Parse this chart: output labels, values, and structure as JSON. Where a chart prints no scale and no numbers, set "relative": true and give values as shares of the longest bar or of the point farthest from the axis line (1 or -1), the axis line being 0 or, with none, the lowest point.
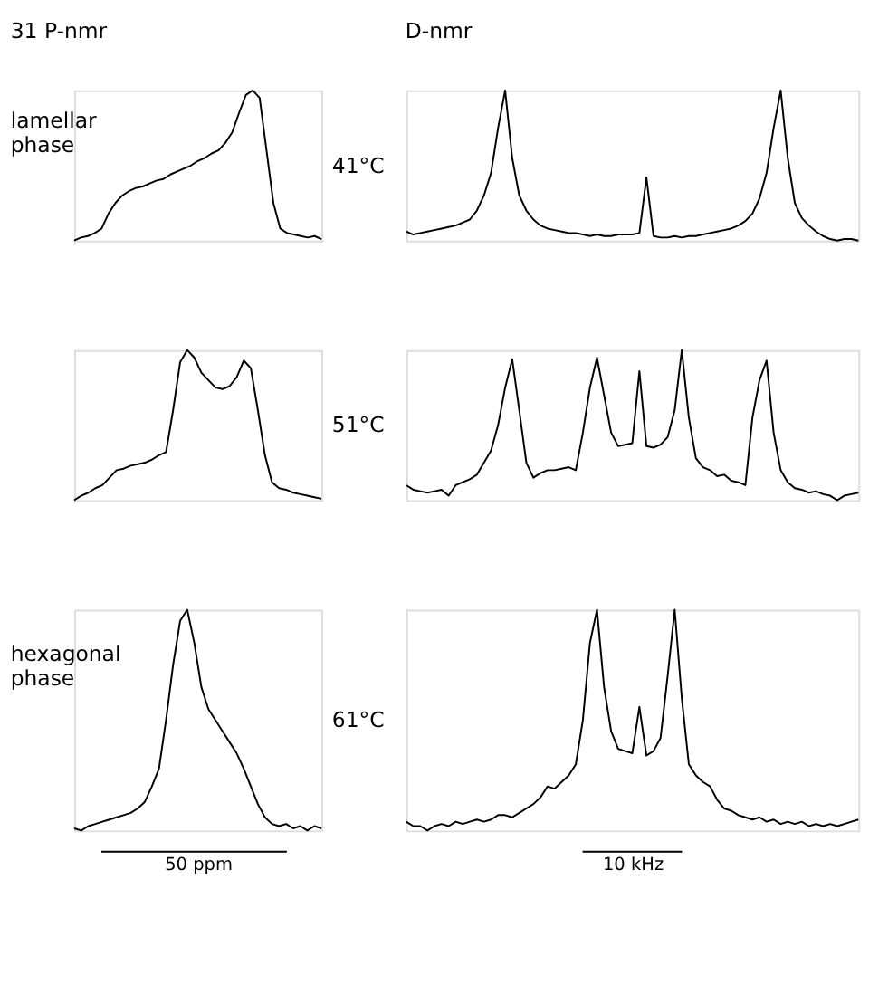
{
  "chart_data": [
    {
      "type": "line",
      "relative": true,
      "title": "31 P-nmr",
      "annotations": [
        "lamellar phase",
        "41°C"
      ],
      "color": "#000000",
      "categories": [
        null,
        null,
        null,
        null,
        null,
        null,
        null,
        null,
        null,
        null,
        null,
        null,
        null,
        null,
        null,
        null,
        null,
        null,
        null,
        null,
        null,
        null,
        null,
        null,
        null,
        null,
        null,
        null,
        null,
        null,
        null,
        null,
        null,
        null,
        null,
        null,
        null
      ],
      "values": [
        0,
        0.02,
        0.03,
        0.05,
        0.08,
        0.18,
        0.25,
        0.3,
        0.33,
        0.35,
        0.36,
        0.38,
        0.4,
        0.41,
        0.44,
        0.46,
        0.48,
        0.5,
        0.53,
        0.55,
        0.58,
        0.6,
        0.65,
        0.72,
        0.85,
        0.97,
        1.0,
        0.95,
        0.6,
        0.25,
        0.08,
        0.05,
        0.04,
        0.03,
        0.02,
        0.03,
        0.01
      ]
    },
    {
      "type": "line",
      "relative": true,
      "title": "D-nmr",
      "color": "#000000",
      "categories": [
        null,
        null,
        null,
        null,
        null,
        null,
        null,
        null,
        null,
        null,
        null,
        null,
        null,
        null,
        null,
        null,
        null,
        null,
        null,
        null,
        null,
        null,
        null,
        null,
        null,
        null,
        null,
        null,
        null,
        null,
        null,
        null,
        null,
        null,
        null,
        null,
        null,
        null,
        null,
        null,
        null,
        null,
        null,
        null,
        null,
        null,
        null,
        null,
        null,
        null,
        null,
        null,
        null,
        null,
        null,
        null,
        null,
        null,
        null,
        null,
        null,
        null,
        null,
        null,
        null
      ],
      "values": [
        0.06,
        0.04,
        0.05,
        0.06,
        0.07,
        0.08,
        0.09,
        0.1,
        0.12,
        0.14,
        0.2,
        0.3,
        0.45,
        0.75,
        1.0,
        0.55,
        0.3,
        0.2,
        0.14,
        0.1,
        0.08,
        0.07,
        0.06,
        0.05,
        0.05,
        0.04,
        0.03,
        0.04,
        0.03,
        0.03,
        0.04,
        0.04,
        0.04,
        0.05,
        0.42,
        0.03,
        0.02,
        0.02,
        0.03,
        0.02,
        0.03,
        0.03,
        0.04,
        0.05,
        0.06,
        0.07,
        0.08,
        0.1,
        0.13,
        0.18,
        0.28,
        0.45,
        0.75,
        1.0,
        0.55,
        0.25,
        0.15,
        0.1,
        0.06,
        0.03,
        0.01,
        0,
        0.01,
        0.01,
        0
      ]
    },
    {
      "type": "line",
      "relative": true,
      "annotations": [
        "51°C"
      ],
      "color": "#000000",
      "categories": [
        null,
        null,
        null,
        null,
        null,
        null,
        null,
        null,
        null,
        null,
        null,
        null,
        null,
        null,
        null,
        null,
        null,
        null,
        null,
        null,
        null,
        null,
        null,
        null,
        null,
        null,
        null,
        null,
        null,
        null,
        null,
        null,
        null,
        null,
        null,
        null
      ],
      "values": [
        0,
        0.03,
        0.05,
        0.08,
        0.1,
        0.15,
        0.2,
        0.21,
        0.23,
        0.24,
        0.25,
        0.27,
        0.3,
        0.32,
        0.6,
        0.92,
        1.0,
        0.95,
        0.85,
        0.8,
        0.75,
        0.74,
        0.76,
        0.82,
        0.93,
        0.88,
        0.6,
        0.3,
        0.12,
        0.08,
        0.07,
        0.05,
        0.04,
        0.03,
        0.02,
        0.01
      ]
    },
    {
      "type": "line",
      "relative": true,
      "color": "#000000",
      "categories": [
        null,
        null,
        null,
        null,
        null,
        null,
        null,
        null,
        null,
        null,
        null,
        null,
        null,
        null,
        null,
        null,
        null,
        null,
        null,
        null,
        null,
        null,
        null,
        null,
        null,
        null,
        null,
        null,
        null,
        null,
        null,
        null,
        null,
        null,
        null,
        null,
        null,
        null,
        null,
        null,
        null,
        null,
        null,
        null,
        null,
        null,
        null,
        null,
        null,
        null,
        null,
        null,
        null,
        null,
        null,
        null,
        null,
        null,
        null,
        null,
        null,
        null,
        null,
        null,
        null
      ],
      "values": [
        0.1,
        0.07,
        0.06,
        0.05,
        0.06,
        0.07,
        0.03,
        0.1,
        0.12,
        0.14,
        0.17,
        0.25,
        0.33,
        0.5,
        0.75,
        0.94,
        0.6,
        0.25,
        0.15,
        0.18,
        0.2,
        0.2,
        0.21,
        0.22,
        0.2,
        0.45,
        0.75,
        0.95,
        0.7,
        0.45,
        0.36,
        0.37,
        0.38,
        0.86,
        0.36,
        0.35,
        0.37,
        0.42,
        0.6,
        1.0,
        0.55,
        0.28,
        0.22,
        0.2,
        0.16,
        0.17,
        0.13,
        0.12,
        0.1,
        0.55,
        0.8,
        0.93,
        0.45,
        0.2,
        0.12,
        0.08,
        0.07,
        0.05,
        0.06,
        0.04,
        0.03,
        0,
        0.03,
        0.04,
        0.05
      ]
    },
    {
      "type": "line",
      "relative": true,
      "annotations": [
        "hexagonal phase",
        "61°C"
      ],
      "xlabel": "50 ppm",
      "color": "#000000",
      "categories": [
        null,
        null,
        null,
        null,
        null,
        null,
        null,
        null,
        null,
        null,
        null,
        null,
        null,
        null,
        null,
        null,
        null,
        null,
        null,
        null,
        null,
        null,
        null,
        null,
        null,
        null,
        null,
        null,
        null,
        null,
        null,
        null,
        null,
        null,
        null,
        null
      ],
      "values": [
        0.01,
        0,
        0.02,
        0.03,
        0.04,
        0.05,
        0.06,
        0.07,
        0.08,
        0.1,
        0.13,
        0.2,
        0.28,
        0.5,
        0.75,
        0.95,
        1.0,
        0.85,
        0.65,
        0.55,
        0.5,
        0.45,
        0.4,
        0.35,
        0.28,
        0.2,
        0.12,
        0.06,
        0.03,
        0.02,
        0.03,
        0.01,
        0.02,
        0,
        0.02,
        0.01
      ]
    },
    {
      "type": "line",
      "relative": true,
      "xlabel": "10 kHz",
      "color": "#000000",
      "categories": [
        null,
        null,
        null,
        null,
        null,
        null,
        null,
        null,
        null,
        null,
        null,
        null,
        null,
        null,
        null,
        null,
        null,
        null,
        null,
        null,
        null,
        null,
        null,
        null,
        null,
        null,
        null,
        null,
        null,
        null,
        null,
        null,
        null,
        null,
        null,
        null,
        null,
        null,
        null,
        null,
        null,
        null,
        null,
        null,
        null,
        null,
        null,
        null,
        null,
        null,
        null,
        null,
        null,
        null,
        null,
        null,
        null,
        null,
        null,
        null,
        null,
        null,
        null,
        null,
        null
      ],
      "values": [
        0.04,
        0.02,
        0.02,
        0,
        0.02,
        0.03,
        0.02,
        0.04,
        0.03,
        0.04,
        0.05,
        0.04,
        0.05,
        0.07,
        0.07,
        0.06,
        0.08,
        0.1,
        0.12,
        0.15,
        0.2,
        0.19,
        0.22,
        0.25,
        0.3,
        0.5,
        0.85,
        1.0,
        0.65,
        0.45,
        0.37,
        0.36,
        0.35,
        0.56,
        0.34,
        0.36,
        0.42,
        0.7,
        1.0,
        0.6,
        0.3,
        0.25,
        0.22,
        0.2,
        0.14,
        0.1,
        0.09,
        0.07,
        0.06,
        0.05,
        0.06,
        0.04,
        0.05,
        0.03,
        0.04,
        0.03,
        0.04,
        0.02,
        0.03,
        0.02,
        0.03,
        0.02,
        0.03,
        0.04,
        0.05
      ]
    }
  ]
}
